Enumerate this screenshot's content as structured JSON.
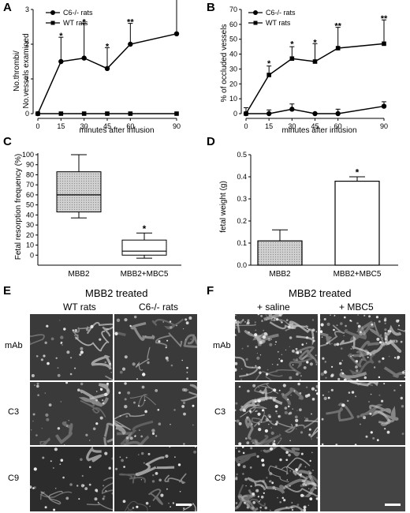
{
  "panel_letters": {
    "a": "A",
    "b": "B",
    "c": "C",
    "d": "D",
    "e": "E",
    "f": "F"
  },
  "colors": {
    "axis": "#000000",
    "box_fill": "#c8c8c8",
    "bar_white": "#ffffff",
    "micrograph_bg": "#3a3a3a"
  },
  "chart_data": [
    {
      "panel": "A",
      "type": "line",
      "ylabel_line1": "No.thrombi/",
      "ylabel_line2": "No.vessels examined",
      "xlabel": "minutes after infusion",
      "x": [
        0,
        15,
        30,
        45,
        60,
        90
      ],
      "xlim": [
        0,
        90
      ],
      "ylim": [
        0,
        3
      ],
      "yticks": [
        0,
        1,
        2,
        3
      ],
      "series": [
        {
          "name": "C6-/- rats",
          "marker": "circle",
          "values": [
            0,
            1.5,
            1.6,
            1.3,
            2.0,
            2.3
          ],
          "error": [
            0,
            0.7,
            1.0,
            0.6,
            0.6,
            1.05
          ]
        },
        {
          "name": "WT rats",
          "marker": "square",
          "values": [
            0,
            0,
            0,
            0,
            0,
            0
          ],
          "error": [
            0,
            0,
            0,
            0,
            0,
            0
          ]
        }
      ],
      "significance": [
        {
          "x": 15,
          "y": 2.2,
          "label": "*"
        },
        {
          "x": 30,
          "y": 2.6,
          "label": "*"
        },
        {
          "x": 45,
          "y": 1.9,
          "label": "*"
        },
        {
          "x": 60,
          "y": 2.6,
          "label": "**"
        },
        {
          "x": 90,
          "y": 3.35,
          "label": "**"
        }
      ]
    },
    {
      "panel": "B",
      "type": "line",
      "ylabel": "% of occluded vessels",
      "xlabel": "minutes after infusion",
      "x": [
        0,
        15,
        30,
        45,
        60,
        90
      ],
      "xlim": [
        0,
        90
      ],
      "ylim": [
        0,
        70
      ],
      "yticks": [
        0,
        10,
        20,
        30,
        40,
        50,
        60,
        70
      ],
      "series": [
        {
          "name": "C6-/- rats",
          "marker": "circle",
          "values": [
            0,
            0,
            3,
            0,
            0,
            5
          ],
          "error": [
            0,
            2.5,
            3.5,
            0,
            3,
            3
          ]
        },
        {
          "name": "WT rats",
          "marker": "square",
          "values": [
            0,
            26,
            37,
            35,
            44,
            47
          ],
          "error": [
            4,
            6,
            8,
            12,
            14,
            16
          ]
        }
      ],
      "significance": [
        {
          "x": 15,
          "y": 33,
          "label": "*"
        },
        {
          "x": 30,
          "y": 46,
          "label": "*"
        },
        {
          "x": 45,
          "y": 47,
          "label": "*"
        },
        {
          "x": 60,
          "y": 58,
          "label": "**"
        },
        {
          "x": 90,
          "y": 63,
          "label": "**"
        }
      ]
    },
    {
      "panel": "C",
      "type": "box",
      "ylabel": "Fetal resorption frequency (%)",
      "categories": [
        "MBB2",
        "MBB2+MBC5"
      ],
      "ylim": [
        -10,
        100
      ],
      "yticks": [
        0,
        10,
        20,
        30,
        40,
        50,
        60,
        70,
        80,
        90,
        100
      ],
      "boxes": [
        {
          "category": "MBB2",
          "min": 37,
          "q1": 43,
          "median": 60,
          "q3": 83,
          "max": 100
        },
        {
          "category": "MBB2+MBC5",
          "min": -3,
          "q1": 0,
          "median": 4,
          "q3": 15,
          "max": 22
        }
      ],
      "significance": [
        {
          "category": "MBB2+MBC5",
          "y": 26,
          "label": "*"
        }
      ]
    },
    {
      "panel": "D",
      "type": "bar",
      "ylabel": "fetal weight (g)",
      "categories": [
        "MBB2",
        "MBB2+MBC5"
      ],
      "values": [
        0.11,
        0.38
      ],
      "error": [
        0.05,
        0.02
      ],
      "ylim": [
        0,
        0.5
      ],
      "yticks": [
        0.0,
        0.1,
        0.2,
        0.3,
        0.4,
        0.5
      ],
      "significance": [
        {
          "category": "MBB2+MBC5",
          "y": 0.42,
          "label": "*"
        }
      ]
    }
  ],
  "panel_e": {
    "title": "MBB2 treated",
    "columns": [
      "WT rats",
      "C6-/- rats"
    ],
    "rows": [
      "mAb",
      "C3",
      "C9"
    ]
  },
  "panel_f": {
    "title": "MBB2 treated",
    "columns": [
      "+ saline",
      "+ MBC5"
    ],
    "rows": [
      "mAb",
      "C3",
      "C9"
    ]
  }
}
